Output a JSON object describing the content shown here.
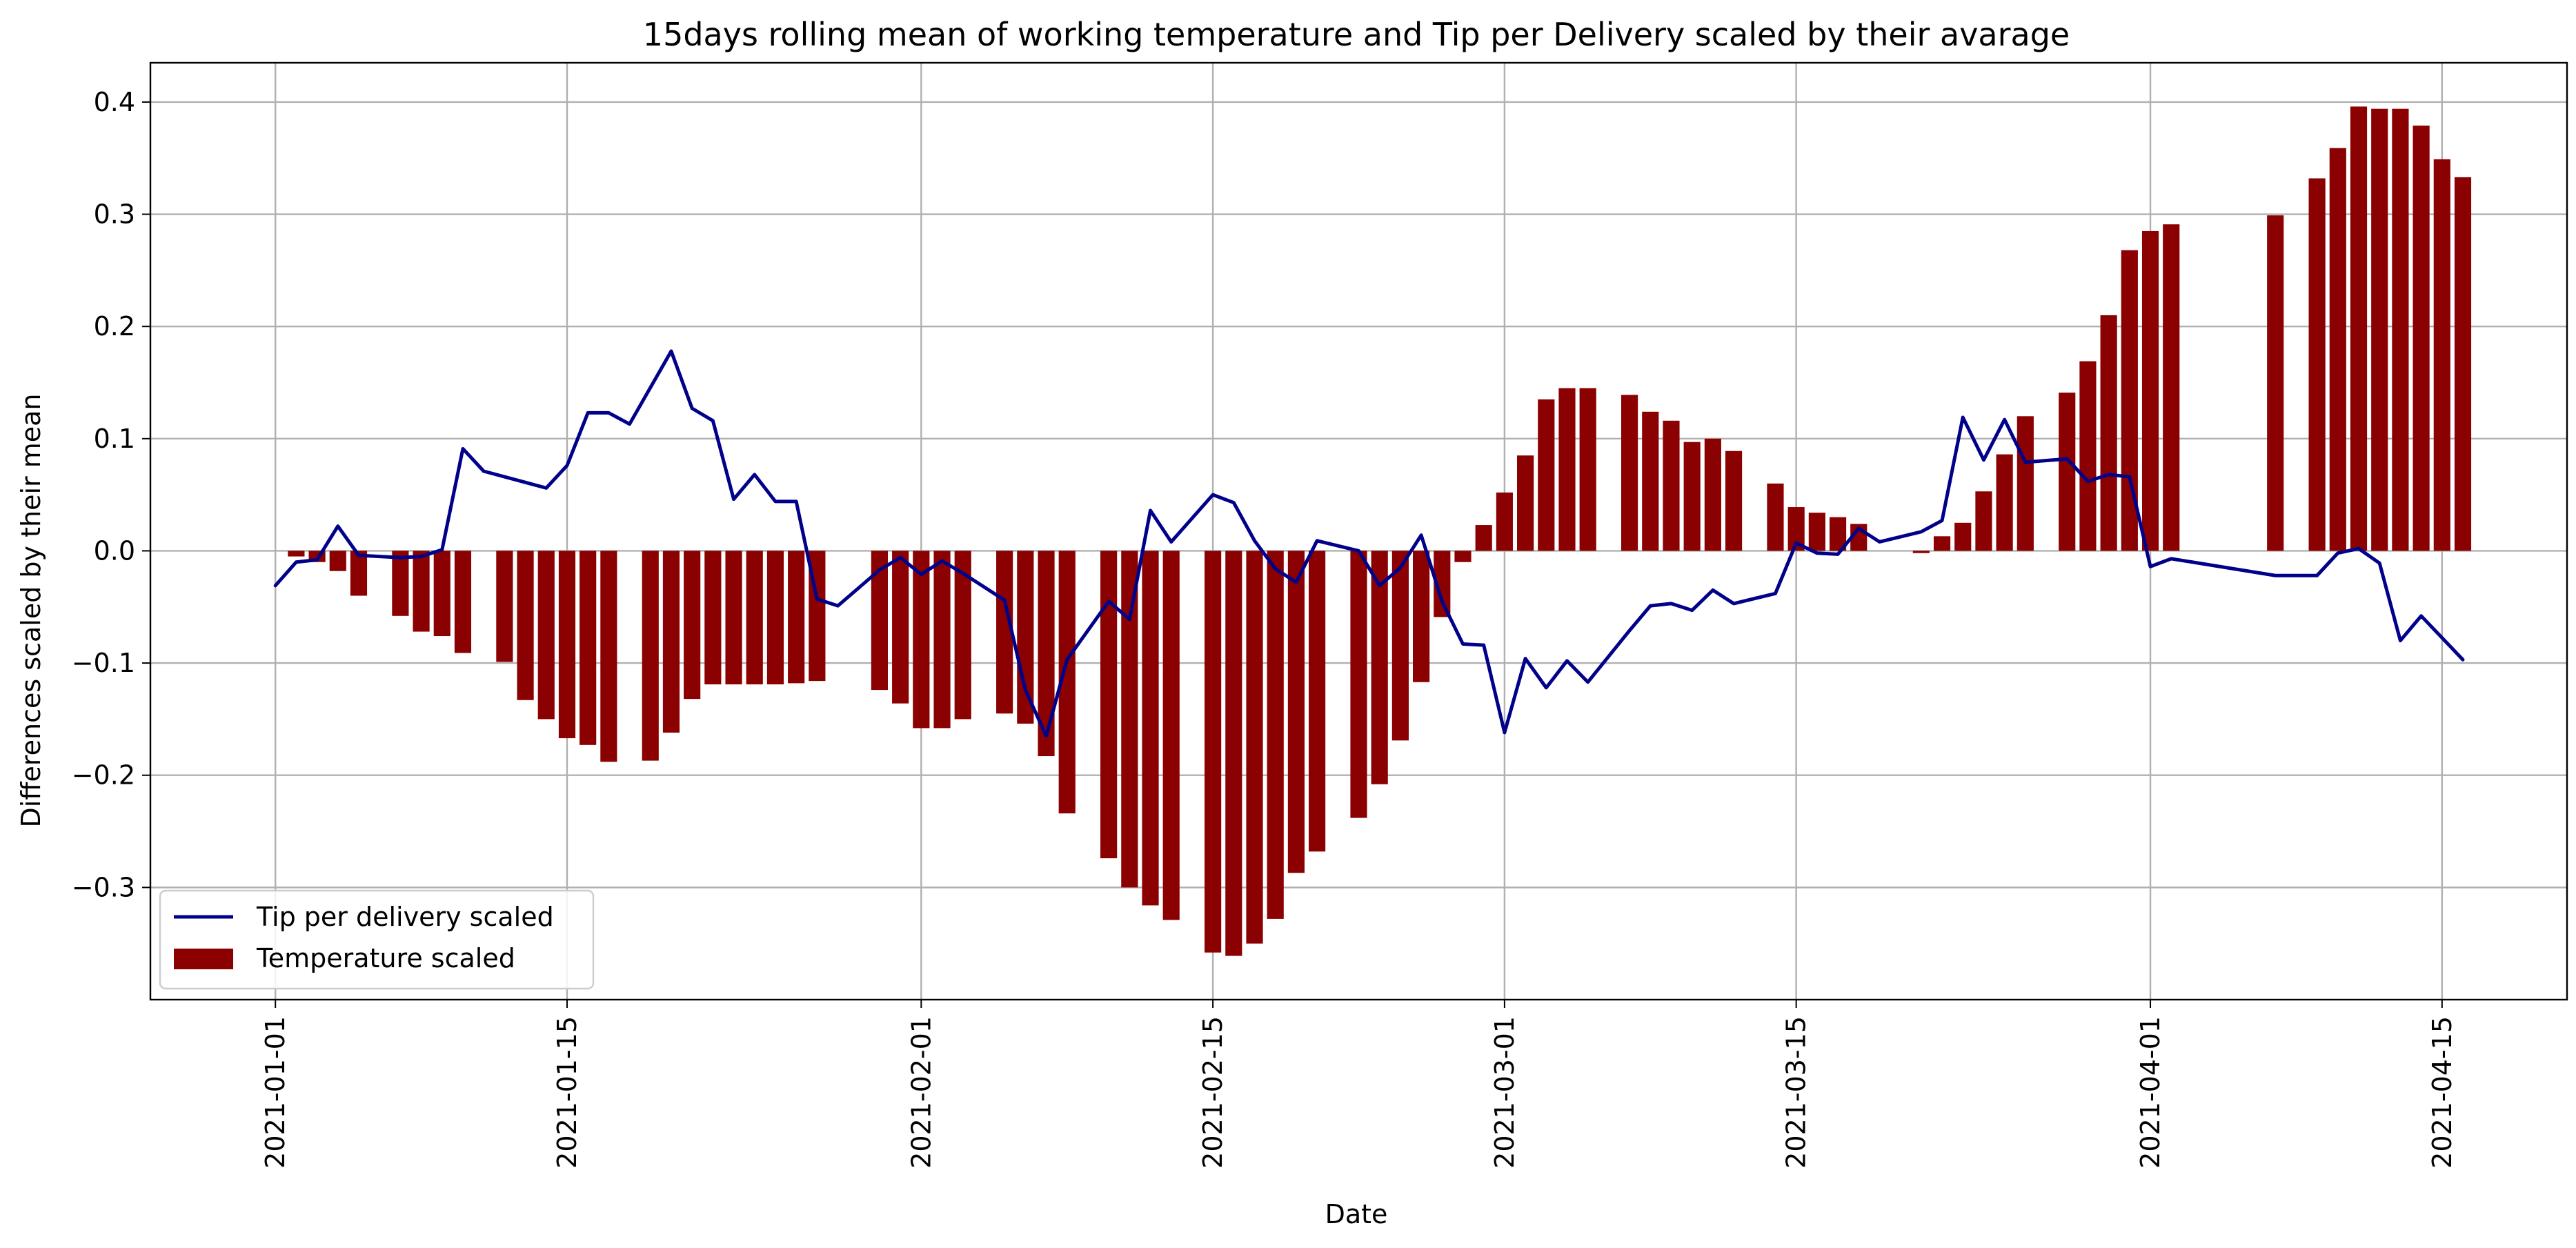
{
  "chart_data": {
    "type": "bar+line",
    "title": "15days rolling mean of working temperature and Tip per Delivery scaled by their avarage",
    "xlabel": "Date",
    "ylabel": "Differences scaled by their mean",
    "xlim": [
      "2020-12-26",
      "2021-04-21"
    ],
    "ylim": [
      -0.4,
      0.435
    ],
    "x_ticks": [
      "2021-01-01",
      "2021-01-15",
      "2021-02-01",
      "2021-02-15",
      "2021-03-01",
      "2021-03-15",
      "2021-04-01",
      "2021-04-15"
    ],
    "y_ticks": [
      -0.3,
      -0.2,
      -0.1,
      0.0,
      0.1,
      0.2,
      0.3,
      0.4
    ],
    "y_tick_labels": [
      "−0.3",
      "−0.2",
      "−0.1",
      "0.0",
      "0.1",
      "0.2",
      "0.3",
      "0.4"
    ],
    "grid": true,
    "legend_position": "lower-left",
    "series": [
      {
        "name": "Tip per delivery scaled",
        "kind": "line",
        "color": "#00008b",
        "points": [
          [
            "2021-01-01",
            -0.031
          ],
          [
            "2021-01-02",
            -0.01
          ],
          [
            "2021-01-03",
            -0.008
          ],
          [
            "2021-01-04",
            0.022
          ],
          [
            "2021-01-05",
            -0.004
          ],
          [
            "2021-01-07",
            -0.006
          ],
          [
            "2021-01-08",
            -0.005
          ],
          [
            "2021-01-09",
            0.001
          ],
          [
            "2021-01-10",
            0.091
          ],
          [
            "2021-01-11",
            0.071
          ],
          [
            "2021-01-14",
            0.056
          ],
          [
            "2021-01-15",
            0.076
          ],
          [
            "2021-01-16",
            0.123
          ],
          [
            "2021-01-17",
            0.123
          ],
          [
            "2021-01-18",
            0.113
          ],
          [
            "2021-01-20",
            0.178
          ],
          [
            "2021-01-21",
            0.127
          ],
          [
            "2021-01-22",
            0.116
          ],
          [
            "2021-01-23",
            0.046
          ],
          [
            "2021-01-24",
            0.068
          ],
          [
            "2021-01-25",
            0.044
          ],
          [
            "2021-01-26",
            0.044
          ],
          [
            "2021-01-27",
            -0.043
          ],
          [
            "2021-01-28",
            -0.049
          ],
          [
            "2021-01-30",
            -0.017
          ],
          [
            "2021-01-31",
            -0.006
          ],
          [
            "2021-02-01",
            -0.021
          ],
          [
            "2021-02-02",
            -0.009
          ],
          [
            "2021-02-03",
            -0.02
          ],
          [
            "2021-02-05",
            -0.044
          ],
          [
            "2021-02-06",
            -0.124
          ],
          [
            "2021-02-07",
            -0.165
          ],
          [
            "2021-02-08",
            -0.097
          ],
          [
            "2021-02-10",
            -0.045
          ],
          [
            "2021-02-11",
            -0.061
          ],
          [
            "2021-02-12",
            0.036
          ],
          [
            "2021-02-13",
            0.008
          ],
          [
            "2021-02-15",
            0.05
          ],
          [
            "2021-02-16",
            0.043
          ],
          [
            "2021-02-17",
            0.009
          ],
          [
            "2021-02-18",
            -0.016
          ],
          [
            "2021-02-19",
            -0.028
          ],
          [
            "2021-02-20",
            0.009
          ],
          [
            "2021-02-22",
            0.0
          ],
          [
            "2021-02-23",
            -0.031
          ],
          [
            "2021-02-24",
            -0.015
          ],
          [
            "2021-02-25",
            0.014
          ],
          [
            "2021-02-26",
            -0.045
          ],
          [
            "2021-02-27",
            -0.083
          ],
          [
            "2021-02-28",
            -0.084
          ],
          [
            "2021-03-01",
            -0.162
          ],
          [
            "2021-03-02",
            -0.096
          ],
          [
            "2021-03-03",
            -0.122
          ],
          [
            "2021-03-04",
            -0.098
          ],
          [
            "2021-03-05",
            -0.117
          ],
          [
            "2021-03-07",
            -0.071
          ],
          [
            "2021-03-08",
            -0.049
          ],
          [
            "2021-03-09",
            -0.047
          ],
          [
            "2021-03-10",
            -0.053
          ],
          [
            "2021-03-11",
            -0.035
          ],
          [
            "2021-03-12",
            -0.047
          ],
          [
            "2021-03-14",
            -0.038
          ],
          [
            "2021-03-15",
            0.007
          ],
          [
            "2021-03-16",
            -0.002
          ],
          [
            "2021-03-17",
            -0.003
          ],
          [
            "2021-03-18",
            0.02
          ],
          [
            "2021-03-19",
            0.008
          ],
          [
            "2021-03-21",
            0.017
          ],
          [
            "2021-03-22",
            0.027
          ],
          [
            "2021-03-23",
            0.119
          ],
          [
            "2021-03-24",
            0.081
          ],
          [
            "2021-03-25",
            0.117
          ],
          [
            "2021-03-26",
            0.079
          ],
          [
            "2021-03-28",
            0.082
          ],
          [
            "2021-03-29",
            0.062
          ],
          [
            "2021-03-30",
            0.068
          ],
          [
            "2021-03-31",
            0.066
          ],
          [
            "2021-04-01",
            -0.014
          ],
          [
            "2021-04-02",
            -0.007
          ],
          [
            "2021-04-07",
            -0.022
          ],
          [
            "2021-04-08",
            -0.022
          ],
          [
            "2021-04-09",
            -0.022
          ],
          [
            "2021-04-10",
            -0.002
          ],
          [
            "2021-04-11",
            0.002
          ],
          [
            "2021-04-12",
            -0.011
          ],
          [
            "2021-04-13",
            -0.08
          ],
          [
            "2021-04-14",
            -0.058
          ],
          [
            "2021-04-16",
            -0.097
          ]
        ]
      },
      {
        "name": "Temperature scaled",
        "kind": "bar",
        "color": "#8b0000",
        "points": [
          [
            "2021-01-02",
            -0.005
          ],
          [
            "2021-01-03",
            -0.01
          ],
          [
            "2021-01-04",
            -0.018
          ],
          [
            "2021-01-05",
            -0.04
          ],
          [
            "2021-01-07",
            -0.058
          ],
          [
            "2021-01-08",
            -0.072
          ],
          [
            "2021-01-09",
            -0.076
          ],
          [
            "2021-01-10",
            -0.091
          ],
          [
            "2021-01-12",
            -0.099
          ],
          [
            "2021-01-13",
            -0.133
          ],
          [
            "2021-01-14",
            -0.15
          ],
          [
            "2021-01-15",
            -0.167
          ],
          [
            "2021-01-16",
            -0.173
          ],
          [
            "2021-01-17",
            -0.188
          ],
          [
            "2021-01-19",
            -0.187
          ],
          [
            "2021-01-20",
            -0.162
          ],
          [
            "2021-01-21",
            -0.132
          ],
          [
            "2021-01-22",
            -0.119
          ],
          [
            "2021-01-23",
            -0.119
          ],
          [
            "2021-01-24",
            -0.119
          ],
          [
            "2021-01-25",
            -0.119
          ],
          [
            "2021-01-26",
            -0.118
          ],
          [
            "2021-01-27",
            -0.116
          ],
          [
            "2021-01-30",
            -0.124
          ],
          [
            "2021-01-31",
            -0.136
          ],
          [
            "2021-02-01",
            -0.158
          ],
          [
            "2021-02-02",
            -0.158
          ],
          [
            "2021-02-03",
            -0.15
          ],
          [
            "2021-02-05",
            -0.145
          ],
          [
            "2021-02-06",
            -0.154
          ],
          [
            "2021-02-07",
            -0.183
          ],
          [
            "2021-02-08",
            -0.234
          ],
          [
            "2021-02-10",
            -0.274
          ],
          [
            "2021-02-11",
            -0.3
          ],
          [
            "2021-02-12",
            -0.316
          ],
          [
            "2021-02-13",
            -0.329
          ],
          [
            "2021-02-15",
            -0.358
          ],
          [
            "2021-02-16",
            -0.361
          ],
          [
            "2021-02-17",
            -0.35
          ],
          [
            "2021-02-18",
            -0.328
          ],
          [
            "2021-02-19",
            -0.287
          ],
          [
            "2021-02-20",
            -0.268
          ],
          [
            "2021-02-22",
            -0.238
          ],
          [
            "2021-02-23",
            -0.208
          ],
          [
            "2021-02-24",
            -0.169
          ],
          [
            "2021-02-25",
            -0.117
          ],
          [
            "2021-02-26",
            -0.059
          ],
          [
            "2021-02-27",
            -0.01
          ],
          [
            "2021-02-28",
            0.023
          ],
          [
            "2021-03-01",
            0.052
          ],
          [
            "2021-03-02",
            0.085
          ],
          [
            "2021-03-03",
            0.135
          ],
          [
            "2021-03-04",
            0.145
          ],
          [
            "2021-03-05",
            0.145
          ],
          [
            "2021-03-07",
            0.139
          ],
          [
            "2021-03-08",
            0.124
          ],
          [
            "2021-03-09",
            0.116
          ],
          [
            "2021-03-10",
            0.097
          ],
          [
            "2021-03-11",
            0.1
          ],
          [
            "2021-03-12",
            0.089
          ],
          [
            "2021-03-14",
            0.06
          ],
          [
            "2021-03-15",
            0.039
          ],
          [
            "2021-03-16",
            0.034
          ],
          [
            "2021-03-17",
            0.03
          ],
          [
            "2021-03-18",
            0.024
          ],
          [
            "2021-03-21",
            -0.002
          ],
          [
            "2021-03-22",
            0.013
          ],
          [
            "2021-03-23",
            0.025
          ],
          [
            "2021-03-24",
            0.053
          ],
          [
            "2021-03-25",
            0.086
          ],
          [
            "2021-03-26",
            0.12
          ],
          [
            "2021-03-28",
            0.141
          ],
          [
            "2021-03-29",
            0.169
          ],
          [
            "2021-03-30",
            0.21
          ],
          [
            "2021-03-31",
            0.268
          ],
          [
            "2021-04-01",
            0.285
          ],
          [
            "2021-04-02",
            0.291
          ],
          [
            "2021-04-07",
            0.299
          ],
          [
            "2021-04-09",
            0.332
          ],
          [
            "2021-04-10",
            0.359
          ],
          [
            "2021-04-11",
            0.396
          ],
          [
            "2021-04-12",
            0.394
          ],
          [
            "2021-04-13",
            0.394
          ],
          [
            "2021-04-14",
            0.379
          ],
          [
            "2021-04-15",
            0.349
          ],
          [
            "2021-04-16",
            0.333
          ]
        ]
      }
    ]
  }
}
